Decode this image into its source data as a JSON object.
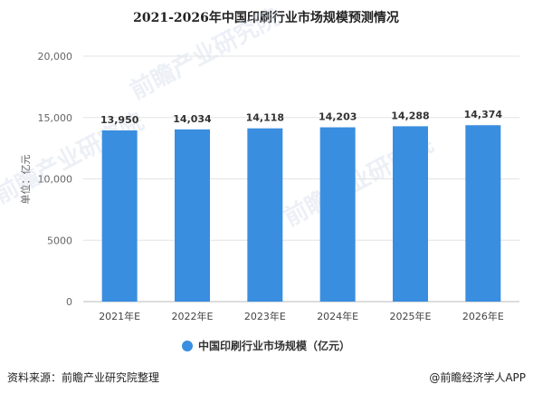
{
  "chart_data": {
    "type": "bar",
    "title": "2021-2026年中国印刷行业市场规模预测情况",
    "ylabel": "单位：亿元",
    "categories": [
      "2021年E",
      "2022年E",
      "2023年E",
      "2024年E",
      "2025年E",
      "2026年E"
    ],
    "series": [
      {
        "name": "中国印刷行业市场规模（亿元）",
        "values": [
          13950,
          14034,
          14118,
          14203,
          14288,
          14374
        ]
      }
    ],
    "value_labels": [
      "13,950",
      "14,034",
      "14,118",
      "14,203",
      "14,288",
      "14,374"
    ],
    "yticks": [
      "0",
      "5000",
      "10,000",
      "15,000",
      "20,000"
    ],
    "ytick_values": [
      0,
      5000,
      10000,
      15000,
      20000
    ],
    "ylim": [
      0,
      20000
    ],
    "grid": true,
    "legend_position": "bottom",
    "bar_color": "#3a8ee0"
  },
  "footer": {
    "source": "资料来源：前瞻产业研究院整理",
    "credit": "@前瞻经济学人APP"
  },
  "watermark": "前瞻产业研究院"
}
